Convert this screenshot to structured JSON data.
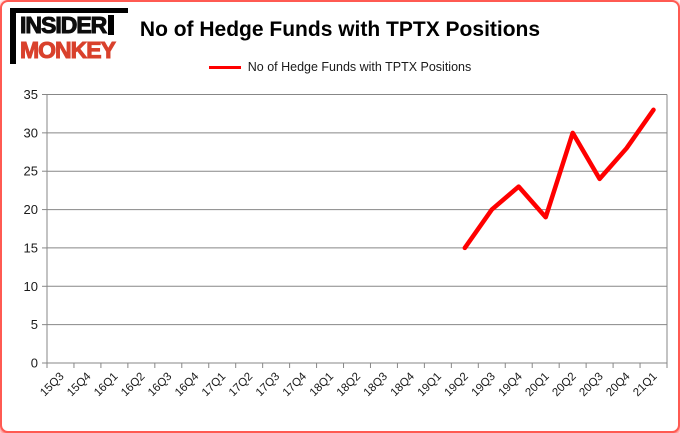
{
  "logo": {
    "line1": "INSIDER",
    "line2": "MONKEY",
    "line1_color": "#0d0d0d",
    "line2_color": "#d9412c"
  },
  "header": {
    "title": "No of Hedge Funds with TPTX Positions"
  },
  "legend": {
    "label": "No of Hedge Funds with TPTX Positions",
    "line_color": "#ff0000"
  },
  "chart_data": {
    "type": "line",
    "title": "No of Hedge Funds with TPTX Positions",
    "xlabel": "",
    "ylabel": "",
    "categories": [
      "15Q3",
      "15Q4",
      "16Q1",
      "16Q2",
      "16Q3",
      "16Q4",
      "17Q1",
      "17Q2",
      "17Q3",
      "17Q4",
      "18Q1",
      "18Q2",
      "18Q3",
      "18Q4",
      "19Q1",
      "19Q2",
      "19Q3",
      "19Q4",
      "20Q1",
      "20Q2",
      "20Q3",
      "20Q4",
      "21Q1"
    ],
    "series": [
      {
        "name": "No of Hedge Funds with TPTX Positions",
        "color": "#ff0000",
        "values": [
          null,
          null,
          null,
          null,
          null,
          null,
          null,
          null,
          null,
          null,
          null,
          null,
          null,
          null,
          null,
          15,
          20,
          23,
          19,
          30,
          24,
          28,
          33
        ]
      }
    ],
    "ylim": [
      0,
      35
    ],
    "yticks": [
      0,
      5,
      10,
      15,
      20,
      25,
      30,
      35
    ],
    "grid": true,
    "gridline_color": "#878787",
    "axis_text_color": "#1a1a1a",
    "legend_position": "top"
  }
}
